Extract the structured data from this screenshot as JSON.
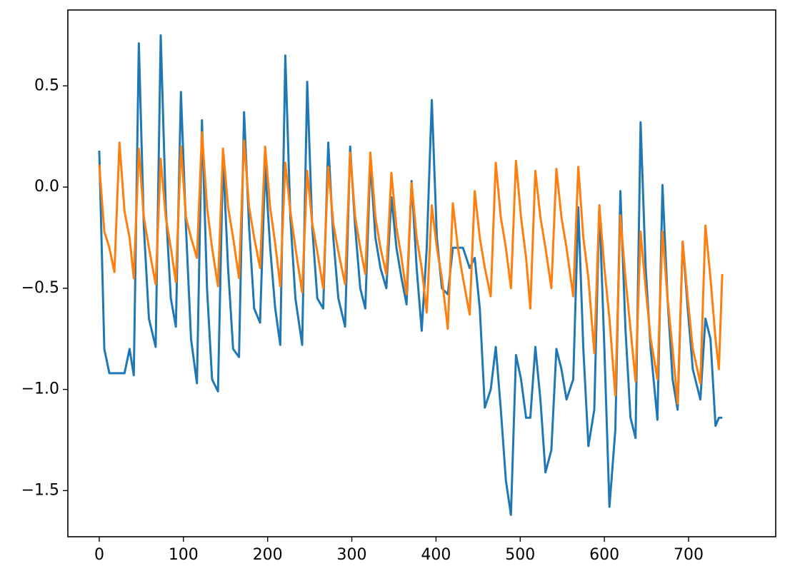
{
  "chart_data": {
    "type": "line",
    "x": [
      0,
      6,
      12,
      18,
      24,
      30,
      36,
      41,
      47,
      53,
      59,
      67,
      73,
      79,
      85,
      91,
      97,
      103,
      109,
      116,
      122,
      128,
      134,
      141,
      147,
      153,
      159,
      166,
      172,
      178,
      184,
      191,
      197,
      203,
      209,
      215,
      221,
      227,
      233,
      241,
      247,
      253,
      259,
      266,
      272,
      278,
      284,
      292,
      298,
      304,
      310,
      316,
      322,
      328,
      334,
      341,
      347,
      353,
      359,
      365,
      371,
      377,
      383,
      389,
      395,
      401,
      407,
      414,
      420,
      426,
      432,
      440,
      446,
      452,
      458,
      465,
      471,
      477,
      483,
      489,
      495,
      501,
      507,
      512,
      518,
      524,
      530,
      537,
      543,
      549,
      555,
      563,
      569,
      575,
      581,
      588,
      594,
      600,
      606,
      613,
      619,
      625,
      631,
      637,
      643,
      649,
      655,
      663,
      669,
      675,
      681,
      687,
      693,
      699,
      705,
      714,
      720,
      726,
      732,
      736,
      740
    ],
    "series": [
      {
        "color": "#1f77b4",
        "values": [
          0.18,
          -0.8,
          -0.92,
          -0.92,
          -0.92,
          -0.92,
          -0.8,
          -0.93,
          0.71,
          -0.2,
          -0.65,
          -0.79,
          0.75,
          -0.1,
          -0.55,
          -0.69,
          0.47,
          -0.2,
          -0.75,
          -0.97,
          0.33,
          -0.5,
          -0.95,
          -1.01,
          0.15,
          -0.4,
          -0.8,
          -0.84,
          0.37,
          -0.2,
          -0.6,
          -0.67,
          0.1,
          -0.3,
          -0.6,
          -0.78,
          0.65,
          -0.15,
          -0.55,
          -0.78,
          0.52,
          -0.2,
          -0.55,
          -0.6,
          0.22,
          -0.25,
          -0.55,
          -0.69,
          0.2,
          -0.2,
          -0.5,
          -0.6,
          0.13,
          -0.25,
          -0.4,
          -0.5,
          -0.05,
          -0.3,
          -0.45,
          -0.58,
          0.03,
          -0.4,
          -0.71,
          -0.3,
          0.43,
          -0.25,
          -0.5,
          -0.53,
          -0.3,
          -0.3,
          -0.3,
          -0.4,
          -0.35,
          -0.6,
          -1.09,
          -1.0,
          -0.79,
          -1.1,
          -1.45,
          -1.62,
          -0.83,
          -0.95,
          -1.14,
          -1.14,
          -0.79,
          -1.05,
          -1.41,
          -1.3,
          -0.8,
          -0.9,
          -1.05,
          -0.95,
          -0.1,
          -0.8,
          -1.28,
          -1.1,
          -0.09,
          -0.8,
          -1.58,
          -1.2,
          -0.02,
          -0.7,
          -1.14,
          -1.24,
          0.32,
          -0.4,
          -0.8,
          -1.15,
          0.01,
          -0.55,
          -0.95,
          -1.1,
          -0.27,
          -0.6,
          -0.9,
          -1.05,
          -0.65,
          -0.75,
          -1.18,
          -1.14,
          -1.14
        ]
      },
      {
        "color": "#ff7f0e",
        "values": [
          0.11,
          -0.22,
          -0.3,
          -0.42,
          0.22,
          -0.12,
          -0.25,
          -0.45,
          0.19,
          -0.15,
          -0.3,
          -0.48,
          0.14,
          -0.15,
          -0.3,
          -0.47,
          0.2,
          -0.15,
          -0.25,
          -0.35,
          0.27,
          -0.1,
          -0.3,
          -0.49,
          0.19,
          -0.1,
          -0.25,
          -0.45,
          0.23,
          -0.1,
          -0.25,
          -0.4,
          0.2,
          -0.1,
          -0.28,
          -0.49,
          0.12,
          -0.12,
          -0.3,
          -0.52,
          0.08,
          -0.18,
          -0.32,
          -0.5,
          0.1,
          -0.18,
          -0.32,
          -0.48,
          0.17,
          -0.15,
          -0.3,
          -0.43,
          0.17,
          -0.15,
          -0.3,
          -0.43,
          0.07,
          -0.2,
          -0.35,
          -0.53,
          0.02,
          -0.25,
          -0.4,
          -0.62,
          -0.09,
          -0.3,
          -0.45,
          -0.7,
          -0.08,
          -0.3,
          -0.45,
          -0.63,
          -0.02,
          -0.25,
          -0.4,
          -0.54,
          0.12,
          -0.15,
          -0.3,
          -0.5,
          0.13,
          -0.15,
          -0.35,
          -0.6,
          0.08,
          -0.15,
          -0.3,
          -0.5,
          0.09,
          -0.15,
          -0.3,
          -0.54,
          0.1,
          -0.25,
          -0.45,
          -0.82,
          -0.09,
          -0.4,
          -0.65,
          -1.03,
          -0.14,
          -0.45,
          -0.7,
          -0.96,
          -0.22,
          -0.5,
          -0.75,
          -0.95,
          -0.22,
          -0.55,
          -0.8,
          -1.07,
          -0.27,
          -0.55,
          -0.8,
          -0.97,
          -0.19,
          -0.45,
          -0.75,
          -0.9,
          -0.43
        ]
      }
    ],
    "xlim": [
      -37.3,
      803.5
    ],
    "ylim": [
      -1.728,
      0.875
    ],
    "xticks": [
      0,
      100,
      200,
      300,
      400,
      500,
      600,
      700
    ],
    "yticks": [
      {
        "value": -1.5,
        "label": "−1.5"
      },
      {
        "value": -1.0,
        "label": "−1.0"
      },
      {
        "value": -0.5,
        "label": "−0.5"
      },
      {
        "value": 0.0,
        "label": "0.0"
      },
      {
        "value": 0.5,
        "label": "0.5"
      }
    ]
  }
}
